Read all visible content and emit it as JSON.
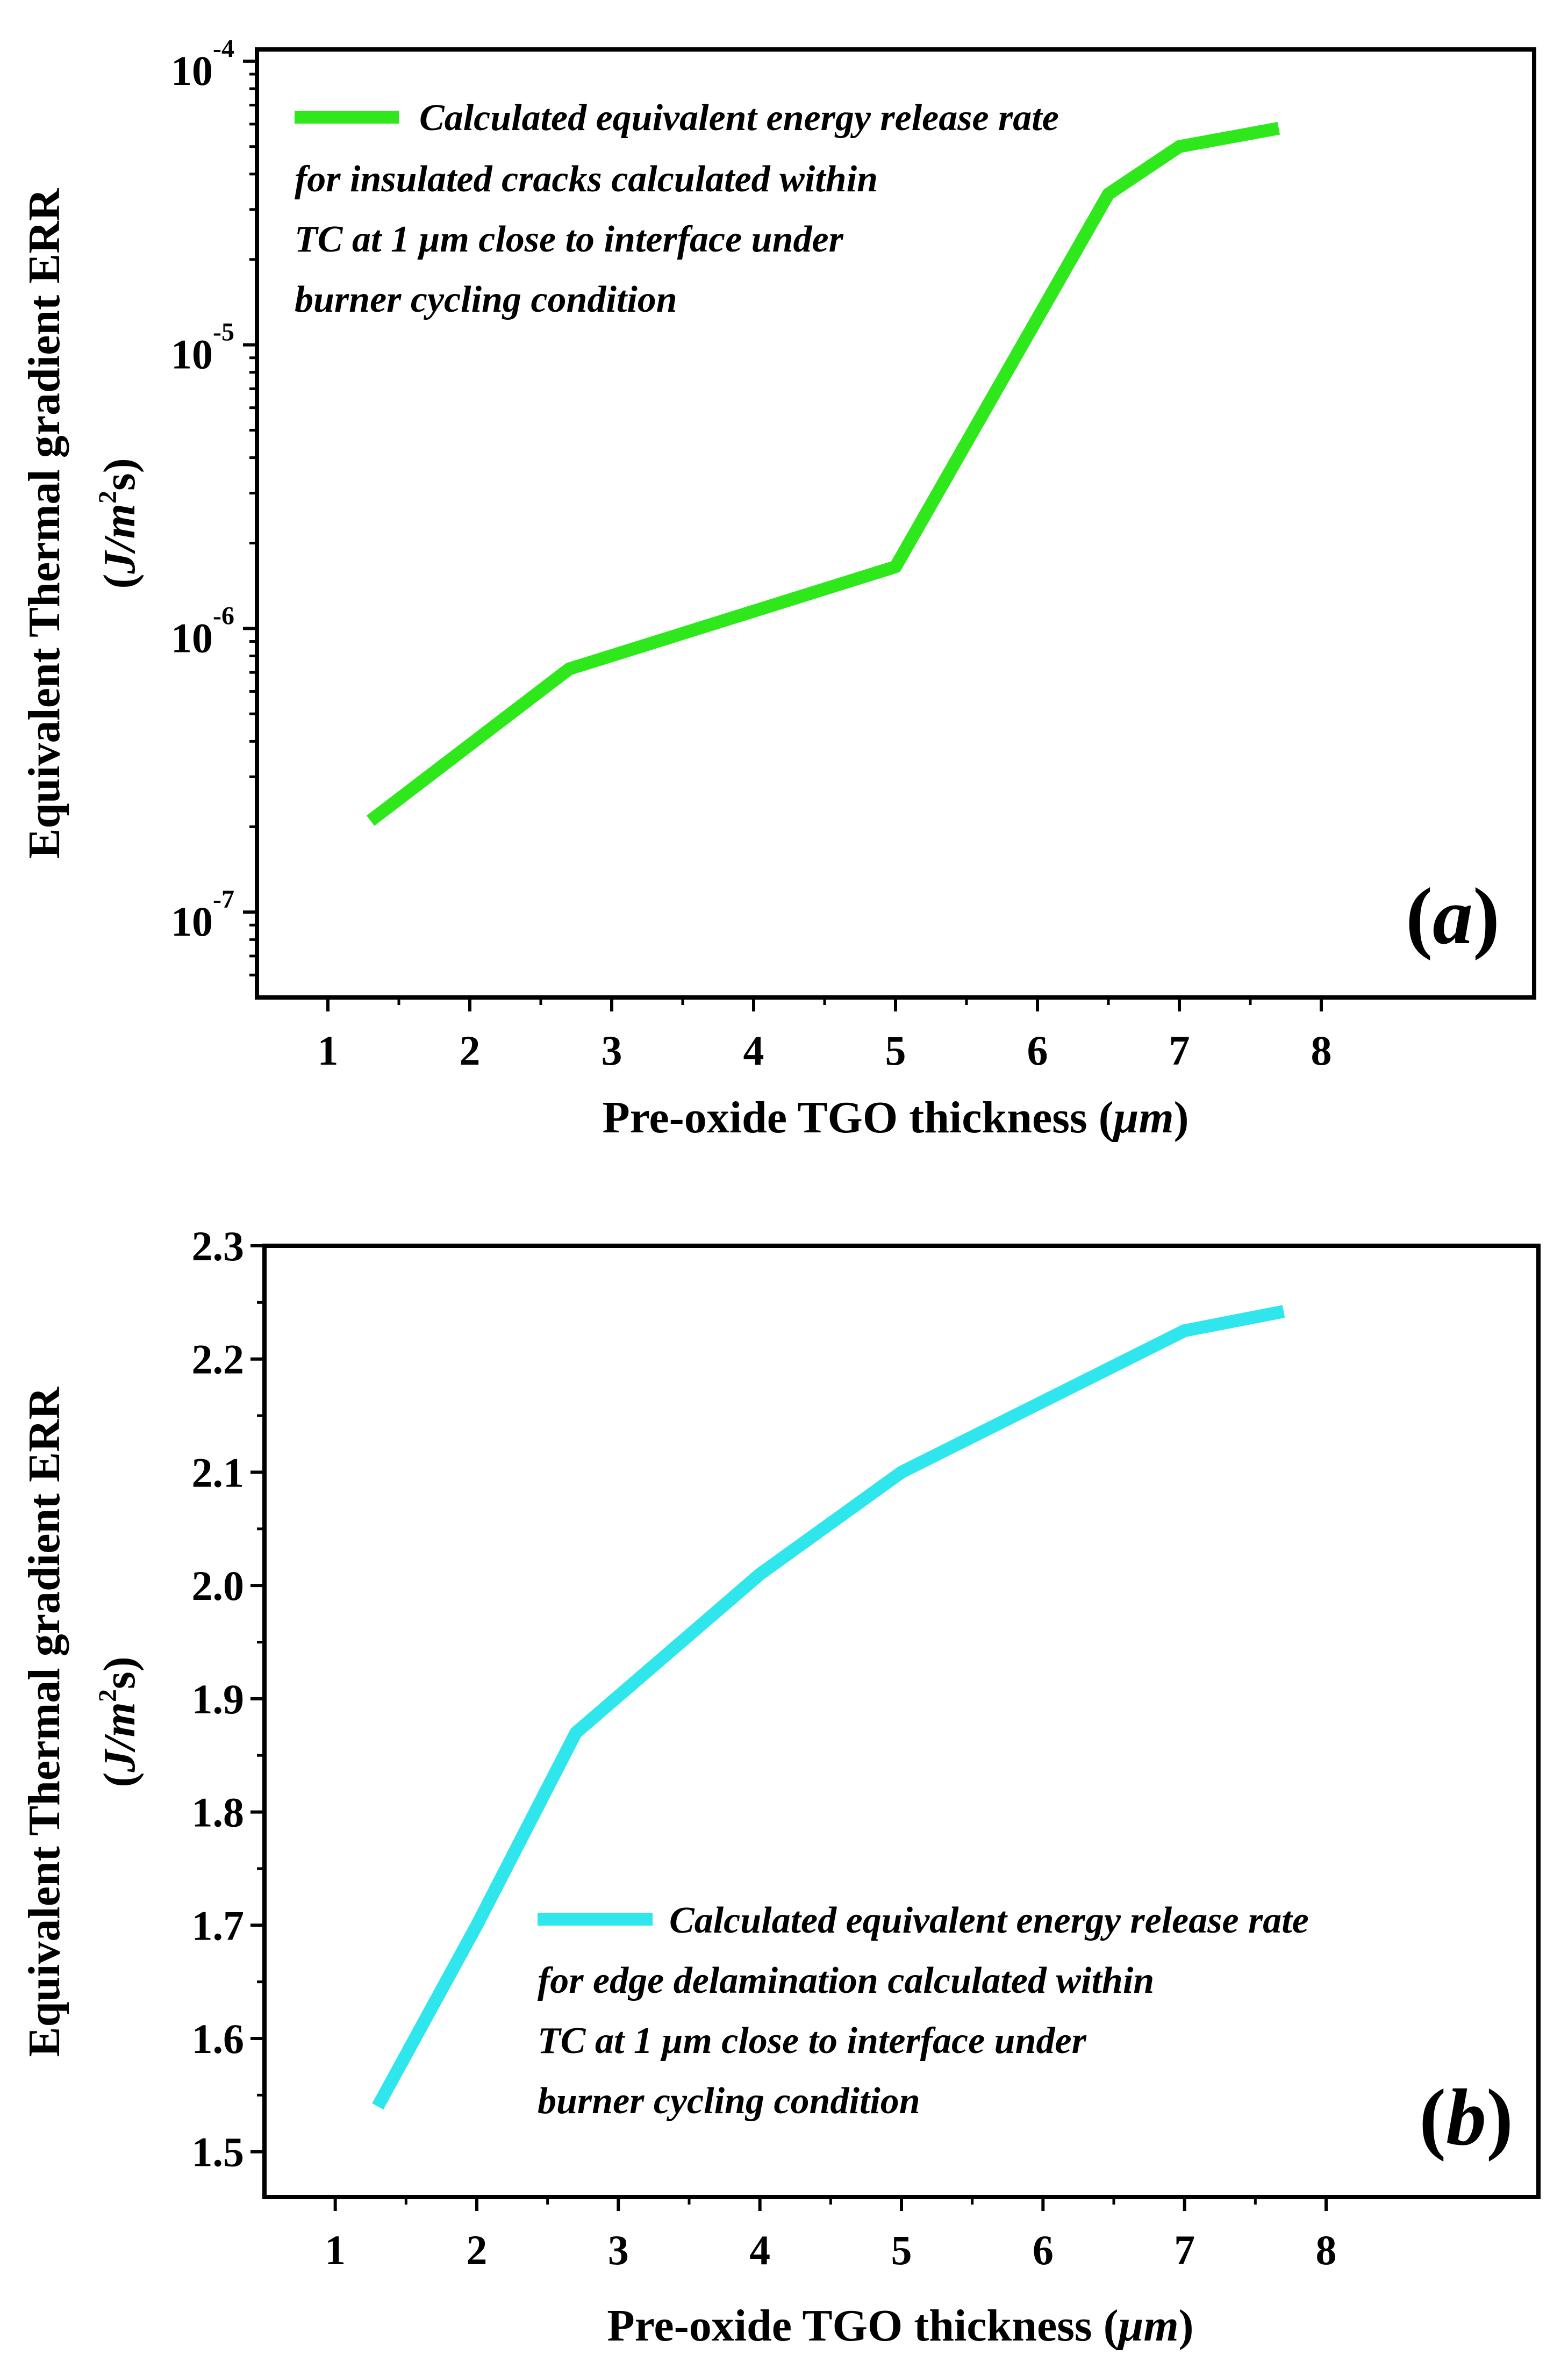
{
  "chart_data": [
    {
      "panel_label": "a",
      "panel_label_display": [
        "(",
        "a",
        ")"
      ],
      "type": "line",
      "yscale": "log",
      "xlabel_display": [
        "Pre-oxide TGO thickness (",
        "μ",
        "m",
        ")"
      ],
      "ylabel": "Equivalent Thermal gradient ERR",
      "ylabel_units_display": [
        "(",
        "J/m",
        "2",
        "s)"
      ],
      "xlim": [
        0.5,
        9.5
      ],
      "xticks": [
        1,
        2,
        3,
        4,
        5,
        6,
        7,
        8
      ],
      "ylim": [
        5e-08,
        0.00011
      ],
      "yticks": [
        {
          "value": 1e-07,
          "base": "10",
          "exp": "-7"
        },
        {
          "value": 1e-06,
          "base": "10",
          "exp": "-6"
        },
        {
          "value": 1e-05,
          "base": "10",
          "exp": "-5"
        },
        {
          "value": 0.0001,
          "base": "10",
          "exp": "-4"
        }
      ],
      "series": [
        {
          "name": "Calculated equivalent energy release rate for insulated cracks calculated within TC at 1 μm close to interface under burner cycling condition",
          "color": "#2ee81c",
          "x": [
            1.3,
            2.7,
            5.0,
            6.5,
            7.0,
            7.7
          ],
          "y": [
            2.1e-07,
            7.2e-07,
            1.65e-06,
            3.4e-05,
            5e-05,
            5.8e-05
          ]
        }
      ],
      "legend_lines": [
        "Calculated equivalent energy release rate",
        "for insulated cracks calculated within",
        "TC at 1 μm close to interface under",
        "burner cycling condition"
      ],
      "legend_position": "top-left"
    },
    {
      "panel_label": "b",
      "panel_label_display": [
        "(",
        "b",
        ")"
      ],
      "type": "line",
      "yscale": "linear",
      "xlabel_display": [
        "Pre-oxide TGO thickness (",
        "μ",
        "m",
        ")"
      ],
      "ylabel": "Equivalent Thermal gradient ERR",
      "ylabel_units_display": [
        "(",
        "J/m",
        "2",
        "s)"
      ],
      "xlim": [
        0.5,
        9.5
      ],
      "xticks": [
        1,
        2,
        3,
        4,
        5,
        6,
        7,
        8
      ],
      "ylim": [
        1.46,
        2.3
      ],
      "yticks": [
        "1.5",
        "1.6",
        "1.7",
        "1.8",
        "1.9",
        "2.0",
        "2.1",
        "2.2",
        "2.3"
      ],
      "series": [
        {
          "name": "Calculated equivalent energy release rate for edge delamination calculated within TC at 1 μm close to interface under burner cycling condition",
          "color": "#2ee6ec",
          "x": [
            1.3,
            2.0,
            2.7,
            4.0,
            5.0,
            7.0,
            7.7
          ],
          "y": [
            1.54,
            1.7,
            1.87,
            2.01,
            2.1,
            2.225,
            2.242
          ]
        }
      ],
      "legend_lines": [
        "Calculated equivalent energy release rate",
        "for edge delamination calculated within",
        "TC at 1 μm close to interface under",
        "burner cycling condition"
      ],
      "legend_position": "bottom-right"
    }
  ]
}
